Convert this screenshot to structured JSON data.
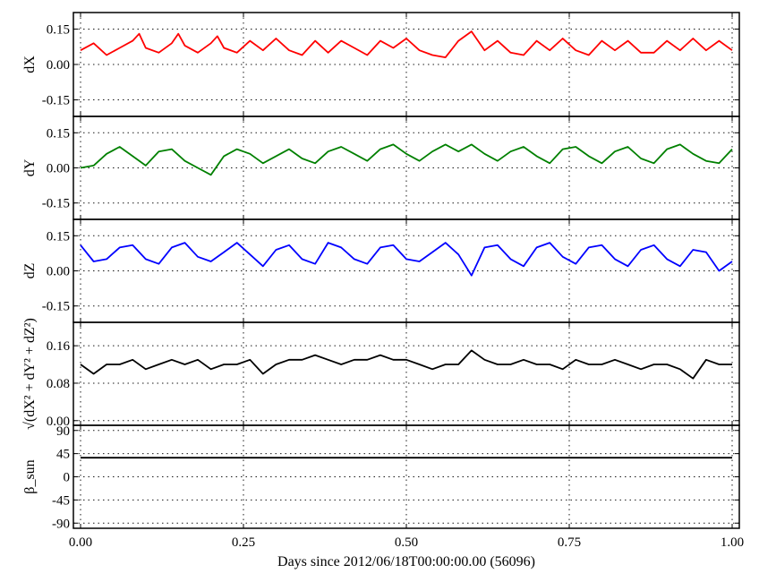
{
  "chart_data": {
    "type": "line",
    "xlabel": "Days since 2012/06/18T00:00:00.00 (56096)",
    "xlim": [
      0,
      1
    ],
    "xticks": [
      "0.00",
      "0.25",
      "0.50",
      "0.75",
      "1.00"
    ],
    "grid": true,
    "panels": [
      {
        "ylabel": "dX",
        "ylim": [
          -0.22,
          0.22
        ],
        "yticks": [
          "0.15",
          "0.00",
          "-0.15"
        ],
        "yticks_values": [
          0.15,
          0.0,
          -0.15
        ],
        "color": "#ff0000",
        "series": {
          "x": [
            0.0,
            0.02,
            0.04,
            0.06,
            0.08,
            0.09,
            0.1,
            0.12,
            0.14,
            0.15,
            0.16,
            0.18,
            0.2,
            0.21,
            0.22,
            0.24,
            0.26,
            0.28,
            0.3,
            0.32,
            0.34,
            0.36,
            0.38,
            0.4,
            0.42,
            0.44,
            0.46,
            0.48,
            0.5,
            0.52,
            0.54,
            0.56,
            0.58,
            0.6,
            0.62,
            0.64,
            0.66,
            0.68,
            0.7,
            0.72,
            0.74,
            0.76,
            0.78,
            0.8,
            0.82,
            0.84,
            0.86,
            0.88,
            0.9,
            0.92,
            0.94,
            0.96,
            0.98,
            1.0
          ],
          "y": [
            0.06,
            0.09,
            0.04,
            0.07,
            0.1,
            0.13,
            0.07,
            0.05,
            0.09,
            0.13,
            0.08,
            0.05,
            0.09,
            0.12,
            0.07,
            0.05,
            0.1,
            0.06,
            0.11,
            0.06,
            0.04,
            0.1,
            0.05,
            0.1,
            0.07,
            0.04,
            0.1,
            0.07,
            0.11,
            0.06,
            0.04,
            0.03,
            0.1,
            0.14,
            0.06,
            0.1,
            0.05,
            0.04,
            0.1,
            0.06,
            0.11,
            0.06,
            0.04,
            0.1,
            0.06,
            0.1,
            0.05,
            0.05,
            0.1,
            0.06,
            0.11,
            0.06,
            0.1,
            0.06
          ]
        }
      },
      {
        "ylabel": "dY",
        "ylim": [
          -0.22,
          0.22
        ],
        "yticks": [
          "0.15",
          "0.00",
          "-0.15"
        ],
        "yticks_values": [
          0.15,
          0.0,
          -0.15
        ],
        "color": "#008000",
        "series": {
          "x": [
            0.0,
            0.02,
            0.04,
            0.06,
            0.08,
            0.1,
            0.12,
            0.14,
            0.16,
            0.18,
            0.2,
            0.22,
            0.24,
            0.26,
            0.28,
            0.3,
            0.32,
            0.34,
            0.36,
            0.38,
            0.4,
            0.42,
            0.44,
            0.46,
            0.48,
            0.5,
            0.52,
            0.54,
            0.56,
            0.58,
            0.6,
            0.62,
            0.64,
            0.66,
            0.68,
            0.7,
            0.72,
            0.74,
            0.76,
            0.78,
            0.8,
            0.82,
            0.84,
            0.86,
            0.88,
            0.9,
            0.92,
            0.94,
            0.96,
            0.98,
            1.0
          ],
          "y": [
            0.0,
            0.01,
            0.06,
            0.09,
            0.05,
            0.01,
            0.07,
            0.08,
            0.03,
            0.0,
            -0.03,
            0.05,
            0.08,
            0.06,
            0.02,
            0.05,
            0.08,
            0.04,
            0.02,
            0.07,
            0.09,
            0.06,
            0.03,
            0.08,
            0.1,
            0.06,
            0.03,
            0.07,
            0.1,
            0.07,
            0.1,
            0.06,
            0.03,
            0.07,
            0.09,
            0.05,
            0.02,
            0.08,
            0.09,
            0.05,
            0.02,
            0.07,
            0.09,
            0.04,
            0.02,
            0.08,
            0.1,
            0.06,
            0.03,
            0.02,
            0.08
          ]
        }
      },
      {
        "ylabel": "dZ",
        "ylim": [
          -0.22,
          0.22
        ],
        "yticks": [
          "0.15",
          "0.00",
          "-0.15"
        ],
        "yticks_values": [
          0.15,
          0.0,
          -0.15
        ],
        "color": "#0000ff",
        "series": {
          "x": [
            0.0,
            0.02,
            0.04,
            0.06,
            0.08,
            0.1,
            0.12,
            0.14,
            0.16,
            0.18,
            0.2,
            0.22,
            0.24,
            0.26,
            0.28,
            0.3,
            0.32,
            0.34,
            0.36,
            0.38,
            0.4,
            0.42,
            0.44,
            0.46,
            0.48,
            0.5,
            0.52,
            0.54,
            0.56,
            0.58,
            0.6,
            0.62,
            0.64,
            0.66,
            0.68,
            0.7,
            0.72,
            0.74,
            0.76,
            0.78,
            0.8,
            0.82,
            0.84,
            0.86,
            0.88,
            0.9,
            0.92,
            0.94,
            0.96,
            0.98,
            1.0
          ],
          "y": [
            0.11,
            0.04,
            0.05,
            0.1,
            0.11,
            0.05,
            0.03,
            0.1,
            0.12,
            0.06,
            0.04,
            0.08,
            0.12,
            0.07,
            0.02,
            0.09,
            0.11,
            0.05,
            0.03,
            0.12,
            0.1,
            0.05,
            0.03,
            0.1,
            0.11,
            0.05,
            0.04,
            0.08,
            0.12,
            0.07,
            -0.02,
            0.1,
            0.11,
            0.05,
            0.02,
            0.1,
            0.12,
            0.06,
            0.03,
            0.1,
            0.11,
            0.05,
            0.02,
            0.09,
            0.11,
            0.05,
            0.02,
            0.09,
            0.08,
            0.0,
            0.04
          ]
        }
      },
      {
        "ylabel": "√(dX² + dY² + dZ²)",
        "ylim": [
          -0.01,
          0.21
        ],
        "yticks": [
          "0.16",
          "0.08",
          "0.00"
        ],
        "yticks_values": [
          0.16,
          0.08,
          0.0
        ],
        "color": "#000000",
        "series": {
          "x": [
            0.0,
            0.02,
            0.04,
            0.06,
            0.08,
            0.1,
            0.12,
            0.14,
            0.16,
            0.18,
            0.2,
            0.22,
            0.24,
            0.26,
            0.28,
            0.3,
            0.32,
            0.34,
            0.36,
            0.38,
            0.4,
            0.42,
            0.44,
            0.46,
            0.48,
            0.5,
            0.52,
            0.54,
            0.56,
            0.58,
            0.6,
            0.62,
            0.64,
            0.66,
            0.68,
            0.7,
            0.72,
            0.74,
            0.76,
            0.78,
            0.8,
            0.82,
            0.84,
            0.86,
            0.88,
            0.9,
            0.92,
            0.94,
            0.96,
            0.98,
            1.0
          ],
          "y": [
            0.12,
            0.1,
            0.12,
            0.12,
            0.13,
            0.11,
            0.12,
            0.13,
            0.12,
            0.13,
            0.11,
            0.12,
            0.12,
            0.13,
            0.1,
            0.12,
            0.13,
            0.13,
            0.14,
            0.13,
            0.12,
            0.13,
            0.13,
            0.14,
            0.13,
            0.13,
            0.12,
            0.11,
            0.12,
            0.12,
            0.15,
            0.13,
            0.12,
            0.12,
            0.13,
            0.12,
            0.12,
            0.11,
            0.13,
            0.12,
            0.12,
            0.13,
            0.12,
            0.11,
            0.12,
            0.12,
            0.11,
            0.09,
            0.13,
            0.12,
            0.12
          ]
        }
      },
      {
        "ylabel": "β_sun",
        "ylim": [
          -100,
          100
        ],
        "yticks": [
          "90",
          "45",
          "0",
          "-45",
          "-90"
        ],
        "yticks_values": [
          90,
          45,
          0,
          -45,
          -90
        ],
        "color": "#000000",
        "series": {
          "x": [
            0.0,
            0.1,
            0.2,
            0.3,
            0.4,
            0.5,
            0.6,
            0.7,
            0.8,
            0.9,
            1.0
          ],
          "y": [
            37,
            37,
            37,
            37,
            37,
            37,
            37,
            37,
            37,
            37,
            37
          ]
        }
      }
    ]
  }
}
